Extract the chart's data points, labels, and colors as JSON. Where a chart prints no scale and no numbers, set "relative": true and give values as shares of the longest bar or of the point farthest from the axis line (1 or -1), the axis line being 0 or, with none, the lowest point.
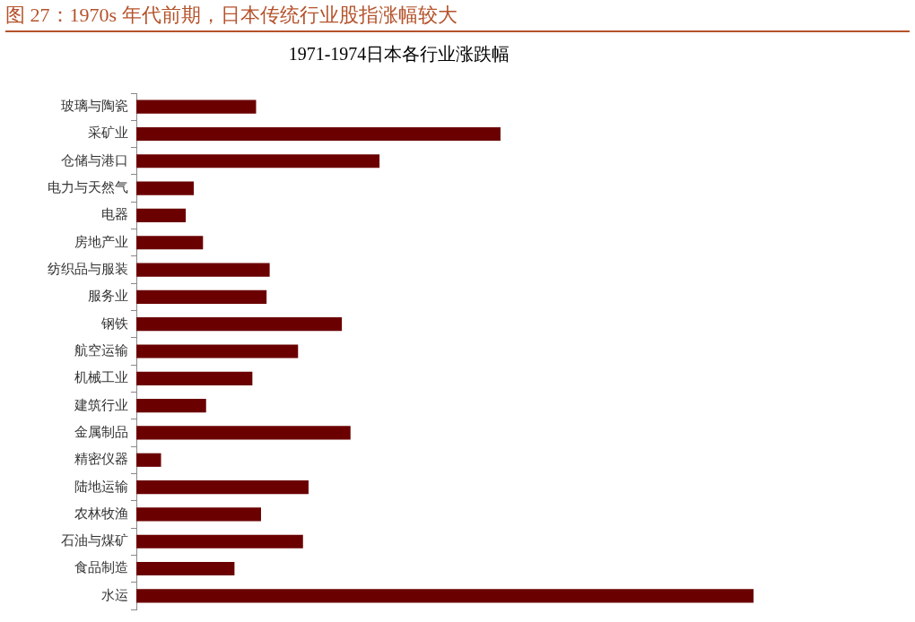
{
  "chart_data": {
    "type": "bar",
    "orientation": "horizontal",
    "relative": true,
    "grid": false,
    "title": "图 27：1970s 年代前期，日本传统行业股指涨幅较大",
    "subtitle": "1971-1974日本各行业涨跌幅",
    "categories": [
      "玻璃与陶瓷",
      "采矿业",
      "仓储与港口",
      "电力与天然气",
      "电器",
      "房地产业",
      "纺织品与服装",
      "服务业",
      "钢铁",
      "航空运输",
      "机械工业",
      "建筑行业",
      "金属制品",
      "精密仪器",
      "陆地运输",
      "农林牧渔",
      "石油与煤矿",
      "食品制造",
      "水运"
    ],
    "values": [
      0.194,
      0.59,
      0.394,
      0.093,
      0.08,
      0.108,
      0.216,
      0.211,
      0.333,
      0.262,
      0.188,
      0.113,
      0.347,
      0.04,
      0.279,
      0.202,
      0.27,
      0.159,
      1
    ],
    "color": "#6b0000"
  }
}
